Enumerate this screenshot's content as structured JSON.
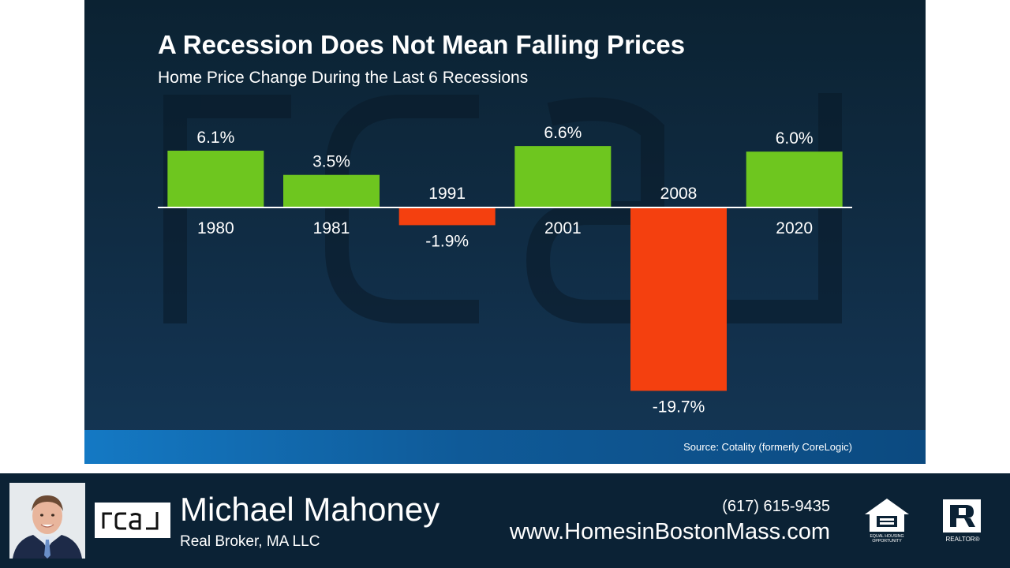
{
  "slide": {
    "title": "A Recession Does Not Mean Falling Prices",
    "subtitle": "Home Price Change During the Last 6 Recessions",
    "source": "Source: Cotality (formerly CoreLogic)"
  },
  "chart_data": {
    "type": "bar",
    "title": "A Recession Does Not Mean Falling Prices",
    "subtitle": "Home Price Change During the Last 6 Recessions",
    "categories": [
      "1980",
      "1981",
      "1991",
      "2001",
      "2008",
      "2020"
    ],
    "values": [
      6.1,
      3.5,
      -1.9,
      6.6,
      -19.7,
      6.0
    ],
    "data_labels": [
      "6.1%",
      "3.5%",
      "-1.9%",
      "6.6%",
      "-19.7%",
      "6.0%"
    ],
    "xlabel": "",
    "ylabel": "",
    "ylim": [
      -20,
      8
    ],
    "grid": false,
    "legend": "none",
    "colors": {
      "positive": "#6ec61f",
      "negative": "#f4400f"
    }
  },
  "footer": {
    "agent_name": "Michael Mahoney",
    "company": "Real Broker, MA LLC",
    "phone": "(617) 615-9435",
    "website": "www.HomesinBostonMass.com",
    "brand_logo_text": "real",
    "eho_text": "EQUAL HOUSING OPPORTUNITY",
    "realtor_text": "REALTOR®",
    "colors": {
      "background": "#0b2235"
    }
  }
}
